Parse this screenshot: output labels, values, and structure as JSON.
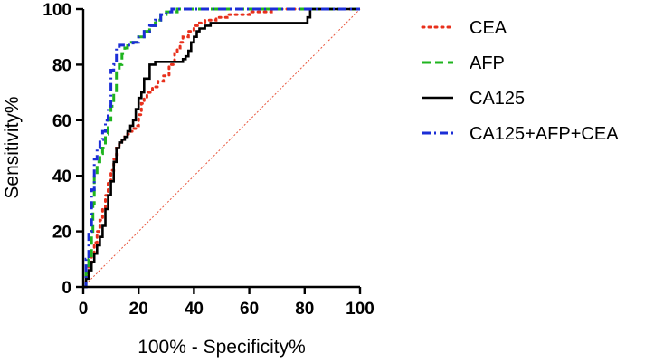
{
  "chart_data": {
    "type": "line",
    "title": "",
    "xlabel": "100% - Specificity%",
    "ylabel": "Sensitivity%",
    "xlim": [
      0,
      100
    ],
    "ylim": [
      0,
      100
    ],
    "x_ticks": [
      0,
      20,
      40,
      60,
      80,
      100
    ],
    "y_ticks": [
      0,
      20,
      40,
      60,
      80,
      100
    ],
    "grid": false,
    "legend_position": "right",
    "reference_line": {
      "name": "reference",
      "x": [
        0,
        100
      ],
      "y": [
        0,
        100
      ],
      "color": "#e8553c"
    },
    "series": [
      {
        "name": "CEA",
        "color": "#e8301c",
        "style": "dotted",
        "x": [
          0,
          1,
          2,
          3,
          4,
          5,
          6,
          7,
          8,
          9,
          10,
          11,
          12,
          13,
          14,
          15,
          16,
          17,
          18,
          19,
          20,
          21,
          22,
          23,
          25,
          27,
          29,
          31,
          33,
          34,
          35,
          36,
          38,
          40,
          42,
          44,
          48,
          52,
          56,
          60,
          64,
          68,
          70,
          75,
          80,
          85,
          90,
          100
        ],
        "y": [
          0,
          4,
          8,
          12,
          16,
          20,
          24,
          28,
          33,
          38,
          42,
          46,
          50,
          52,
          53,
          54,
          55,
          56,
          57,
          58,
          62,
          66,
          68,
          70,
          72,
          74,
          76,
          80,
          84,
          86,
          88,
          90,
          92,
          94,
          95,
          96,
          97,
          98,
          98,
          99,
          99,
          100,
          100,
          100,
          100,
          100,
          100,
          100
        ]
      },
      {
        "name": "AFP",
        "color": "#1fb41f",
        "style": "dashed",
        "x": [
          0,
          1,
          2,
          3,
          3.5,
          4,
          5,
          6,
          7,
          8,
          9,
          10,
          11,
          12,
          13,
          14,
          15,
          16,
          18,
          20,
          22,
          24,
          26,
          28,
          30,
          32,
          34,
          36,
          40,
          50,
          60,
          70,
          80,
          90,
          100
        ],
        "y": [
          0,
          5,
          10,
          20,
          30,
          40,
          45,
          48,
          50,
          55,
          60,
          65,
          70,
          78,
          80,
          84,
          86,
          88,
          88,
          90,
          92,
          94,
          96,
          98,
          99,
          99,
          100,
          100,
          100,
          100,
          100,
          100,
          100,
          100,
          100
        ]
      },
      {
        "name": "CA125",
        "color": "#000000",
        "style": "solid",
        "x": [
          0,
          1,
          2,
          3,
          4,
          5,
          6,
          7,
          8,
          9,
          10,
          11,
          12,
          13,
          14,
          15,
          16,
          17,
          18,
          19,
          20,
          21,
          22,
          24,
          26,
          28,
          30,
          32,
          34,
          36,
          37,
          38,
          39,
          40,
          41,
          42,
          44,
          46,
          50,
          55,
          60,
          65,
          70,
          75,
          78,
          80,
          81,
          82,
          100
        ],
        "y": [
          0,
          3,
          6,
          9,
          12,
          15,
          18,
          22,
          28,
          33,
          38,
          45,
          50,
          52,
          53,
          54,
          56,
          58,
          60,
          64,
          68,
          70,
          75,
          80,
          81,
          81,
          81,
          81,
          81,
          82,
          83,
          85,
          88,
          90,
          92,
          93,
          94,
          95,
          95,
          95,
          95,
          95,
          95,
          95,
          95,
          95,
          97,
          100,
          100
        ]
      },
      {
        "name": "CA125+AFP+CEA",
        "color": "#1b2ed6",
        "style": "dashdot",
        "x": [
          0,
          1,
          2,
          3,
          4,
          5,
          6,
          7,
          8,
          9,
          10,
          11,
          12,
          13,
          14,
          15,
          16,
          18,
          20,
          22,
          24,
          26,
          28,
          30,
          32,
          34,
          36,
          40,
          50,
          60,
          70,
          80,
          90,
          100
        ],
        "y": [
          0,
          10,
          20,
          35,
          46,
          50,
          53,
          56,
          60,
          65,
          78,
          80,
          86,
          87,
          87,
          87,
          87,
          88,
          90,
          92,
          94,
          96,
          98,
          99,
          100,
          100,
          100,
          100,
          100,
          100,
          100,
          100,
          100,
          100
        ]
      }
    ]
  }
}
